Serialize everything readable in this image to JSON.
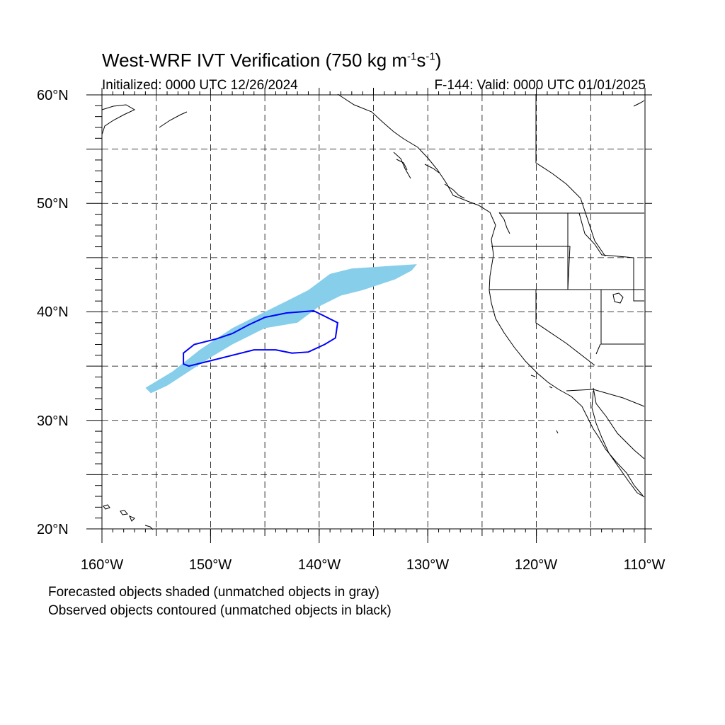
{
  "title": {
    "main": "West-WRF IVT Verification (750 kg m",
    "exp1": "-1",
    "mid": "s",
    "exp2": "-1",
    "close": ")"
  },
  "subtitle_left": "Initialized: 0000 UTC 12/26/2024",
  "subtitle_right": "F-144: Valid: 0000 UTC 01/01/2025",
  "lat_labels": [
    "60°N",
    "50°N",
    "40°N",
    "30°N",
    "20°N"
  ],
  "lon_labels": [
    "160°W",
    "150°W",
    "140°W",
    "130°W",
    "120°W",
    "110°W"
  ],
  "footnotes": [
    "Forecasted objects shaded (unmatched objects in gray)",
    "Observed objects contoured (unmatched objects in black)"
  ],
  "map_extent": {
    "lon": [
      -160,
      -110
    ],
    "lat": [
      20,
      60
    ]
  },
  "colors": {
    "forecast_fill": "#87ceeb",
    "observed_contour": "#0000ff",
    "coast": "#000000",
    "grid": "#000000"
  },
  "forecast_object": [
    [
      -156.0,
      33.0
    ],
    [
      -153.5,
      34.5
    ],
    [
      -151.0,
      36.5
    ],
    [
      -148.0,
      38.5
    ],
    [
      -145.0,
      40.0
    ],
    [
      -143.0,
      41.0
    ],
    [
      -141.0,
      42.0
    ],
    [
      -139.0,
      43.5
    ],
    [
      -137.0,
      44.0
    ],
    [
      -134.0,
      44.2
    ],
    [
      -131.0,
      44.4
    ],
    [
      -131.5,
      43.8
    ],
    [
      -133.0,
      43.0
    ],
    [
      -136.0,
      42.0
    ],
    [
      -138.0,
      41.5
    ],
    [
      -140.0,
      40.5
    ],
    [
      -142.0,
      39.0
    ],
    [
      -145.0,
      38.5
    ],
    [
      -148.0,
      37.0
    ],
    [
      -150.0,
      35.8
    ],
    [
      -152.0,
      34.5
    ],
    [
      -154.0,
      33.2
    ],
    [
      -155.5,
      32.5
    ]
  ],
  "observed_object": [
    [
      -152.5,
      36.2
    ],
    [
      -151.5,
      37.0
    ],
    [
      -149.5,
      37.5
    ],
    [
      -148.0,
      38.0
    ],
    [
      -146.5,
      38.8
    ],
    [
      -145.0,
      39.5
    ],
    [
      -143.0,
      39.9
    ],
    [
      -140.5,
      40.1
    ],
    [
      -139.5,
      39.6
    ],
    [
      -138.3,
      39.0
    ],
    [
      -138.5,
      37.6
    ],
    [
      -139.5,
      37.0
    ],
    [
      -141.0,
      36.3
    ],
    [
      -142.5,
      36.2
    ],
    [
      -144.0,
      36.5
    ],
    [
      -146.0,
      36.5
    ],
    [
      -148.0,
      36.0
    ],
    [
      -150.0,
      35.5
    ],
    [
      -152.0,
      35.0
    ],
    [
      -152.5,
      35.2
    ]
  ]
}
